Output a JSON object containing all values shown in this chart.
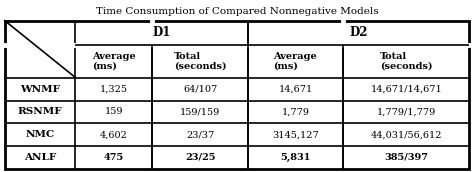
{
  "title": "Time Consumption of Compared Nonnegative Models",
  "col_headers": [
    "D1",
    "D2"
  ],
  "sub_headers": [
    "Average\n(ms)",
    "Total\n(seconds)",
    "Average\n(ms)",
    "Total\n(seconds)"
  ],
  "row_labels": [
    "WNMF",
    "RSNMF",
    "NMC",
    "ANLF"
  ],
  "data": [
    [
      "1,325",
      "64/107",
      "14,671",
      "14,671/14,671"
    ],
    [
      "159",
      "159/159",
      "1,779",
      "1,779/1,779"
    ],
    [
      "4,602",
      "23/37",
      "3145,127",
      "44,031/56,612"
    ],
    [
      "475",
      "23/25",
      "5,831",
      "385/397"
    ]
  ],
  "bold_last_row": true,
  "bg_color": "#ffffff",
  "border_color": "#000000",
  "figsize": [
    4.74,
    1.72
  ],
  "dpi": 100
}
